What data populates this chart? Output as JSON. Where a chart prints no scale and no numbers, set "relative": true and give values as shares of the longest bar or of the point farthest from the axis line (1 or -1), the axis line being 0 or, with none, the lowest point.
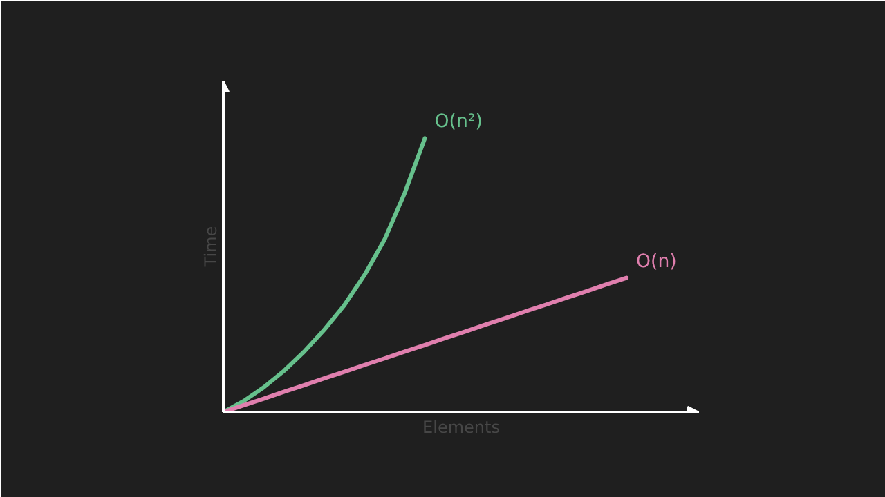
{
  "chart_data": {
    "type": "line",
    "relative": true,
    "xlabel": "Elements",
    "ylabel": "Time",
    "tick_labels": false,
    "marker": "none",
    "line_style": "solid",
    "categories": [
      null,
      null,
      null,
      null,
      null,
      null,
      null,
      null,
      null,
      null,
      null,
      null,
      null,
      null,
      null,
      null,
      null,
      null,
      null,
      null,
      null
    ],
    "series": [
      {
        "name": "O(n²)",
        "color": "#66c08c",
        "values": [
          0,
          0.04,
          0.09,
          0.15,
          0.22,
          0.3,
          0.39,
          0.5,
          0.63,
          0.8,
          1.0,
          null,
          null,
          null,
          null,
          null,
          null,
          null,
          null,
          null,
          null
        ]
      },
      {
        "name": "O(n)",
        "color": "#e07fae",
        "values": [
          0,
          0.025,
          0.049,
          0.074,
          0.098,
          0.123,
          0.147,
          0.172,
          0.196,
          0.221,
          0.245,
          0.27,
          0.294,
          0.319,
          0.343,
          0.368,
          0.392,
          0.417,
          0.441,
          0.466,
          0.49
        ]
      }
    ]
  }
}
